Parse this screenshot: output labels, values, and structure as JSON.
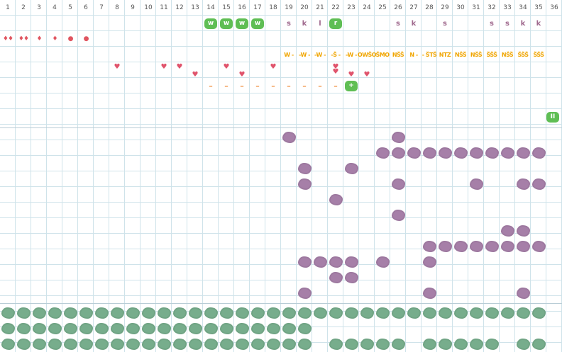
{
  "colors": {
    "purple": "#a67fa8",
    "green_blob": "#77ad8c",
    "badge": "#5fbe54",
    "heart": "#e0546c",
    "drop": "#e05560",
    "code": "#f0a500",
    "letter": "#a06a8e",
    "dash": "#f0954a"
  },
  "days": [
    "1",
    "2",
    "3",
    "4",
    "5",
    "6",
    "7",
    "8",
    "9",
    "10",
    "11",
    "12",
    "13",
    "14",
    "15",
    "16",
    "17",
    "18",
    "19",
    "20",
    "21",
    "22",
    "23",
    "24",
    "25",
    "26",
    "27",
    "28",
    "29",
    "30",
    "31",
    "32",
    "33",
    "34",
    "35",
    "36"
  ],
  "badges": [
    {
      "day": 14,
      "text": "w"
    },
    {
      "day": 15,
      "text": "w"
    },
    {
      "day": 16,
      "text": "w"
    },
    {
      "day": 17,
      "text": "w"
    },
    {
      "day": 22,
      "text": "r"
    }
  ],
  "letters": [
    {
      "day": 19,
      "text": "s"
    },
    {
      "day": 20,
      "text": "k"
    },
    {
      "day": 21,
      "text": "l"
    },
    {
      "day": 26,
      "text": "s"
    },
    {
      "day": 27,
      "text": "k"
    },
    {
      "day": 29,
      "text": "s"
    },
    {
      "day": 32,
      "text": "s"
    },
    {
      "day": 33,
      "text": "s"
    },
    {
      "day": 34,
      "text": "k"
    },
    {
      "day": 35,
      "text": "k"
    }
  ],
  "drops": [
    {
      "day": 1,
      "text": "♦♦"
    },
    {
      "day": 2,
      "text": "♦♦"
    },
    {
      "day": 3,
      "text": "♦"
    },
    {
      "day": 4,
      "text": "♦"
    },
    {
      "day": 5,
      "text": "●"
    },
    {
      "day": 6,
      "text": "●"
    }
  ],
  "codes": [
    {
      "day": 19,
      "text": "W -"
    },
    {
      "day": 20,
      "text": "-W -"
    },
    {
      "day": 21,
      "text": "-W -"
    },
    {
      "day": 22,
      "text": "-Š -"
    },
    {
      "day": 23,
      "text": "-W -"
    },
    {
      "day": 24,
      "text": "OWŠO"
    },
    {
      "day": 25,
      "text": "ŠMO"
    },
    {
      "day": 26,
      "text": "NŠŠ"
    },
    {
      "day": 27,
      "text": "N -"
    },
    {
      "day": 28,
      "text": "- ŠTŠ"
    },
    {
      "day": 29,
      "text": "NTZ"
    },
    {
      "day": 30,
      "text": "NŠŠ"
    },
    {
      "day": 31,
      "text": "NŠŠ"
    },
    {
      "day": 32,
      "text": "ŠŠŠ"
    },
    {
      "day": 33,
      "text": "NŠŠ"
    },
    {
      "day": 34,
      "text": "ŠŠŠ"
    },
    {
      "day": 35,
      "text": "ŠŠŠ"
    }
  ],
  "hearts": [
    {
      "day": 8,
      "row": 4
    },
    {
      "day": 11,
      "row": 4
    },
    {
      "day": 12,
      "row": 4
    },
    {
      "day": 13,
      "row": 4.5
    },
    {
      "day": 15,
      "row": 4
    },
    {
      "day": 16,
      "row": 4.5
    },
    {
      "day": 18,
      "row": 4
    },
    {
      "day": 22,
      "row": 4
    },
    {
      "day": 22,
      "row": 4.3
    },
    {
      "day": 23,
      "row": 4.5
    },
    {
      "day": 24,
      "row": 4.5
    }
  ],
  "dashes": [
    14,
    15,
    16,
    17,
    18,
    19,
    20,
    21,
    22
  ],
  "plus_badge": {
    "day": 23,
    "text": "+"
  },
  "pause_badge": {
    "day": 36,
    "text": "II"
  },
  "purple_cells": [
    [
      19,
      8
    ],
    [
      26,
      8
    ],
    [
      25,
      9
    ],
    [
      26,
      9
    ],
    [
      27,
      9
    ],
    [
      28,
      9
    ],
    [
      29,
      9
    ],
    [
      30,
      9
    ],
    [
      31,
      9
    ],
    [
      32,
      9
    ],
    [
      33,
      9
    ],
    [
      34,
      9
    ],
    [
      35,
      9
    ],
    [
      20,
      10
    ],
    [
      23,
      10
    ],
    [
      20,
      11
    ],
    [
      26,
      11
    ],
    [
      31,
      11
    ],
    [
      34,
      11
    ],
    [
      35,
      11
    ],
    [
      22,
      12
    ],
    [
      26,
      13
    ],
    [
      33,
      14
    ],
    [
      34,
      14
    ],
    [
      28,
      15
    ],
    [
      29,
      15
    ],
    [
      30,
      15
    ],
    [
      31,
      15
    ],
    [
      32,
      15
    ],
    [
      33,
      15
    ],
    [
      34,
      15
    ],
    [
      35,
      15
    ],
    [
      20,
      16
    ],
    [
      21,
      16
    ],
    [
      22,
      16
    ],
    [
      23,
      16
    ],
    [
      25,
      16
    ],
    [
      28,
      16
    ],
    [
      22,
      17
    ],
    [
      23,
      17
    ],
    [
      20,
      18
    ],
    [
      28,
      18
    ],
    [
      34,
      18
    ]
  ],
  "green_rows": [
    {
      "row": 19.6,
      "from": 1,
      "to": 35,
      "skip": []
    },
    {
      "row": 20.6,
      "from": 1,
      "to": 20,
      "skip": []
    },
    {
      "row": 21.6,
      "from": 1,
      "to": 35,
      "skip": [
        21,
        27,
        33
      ]
    }
  ]
}
